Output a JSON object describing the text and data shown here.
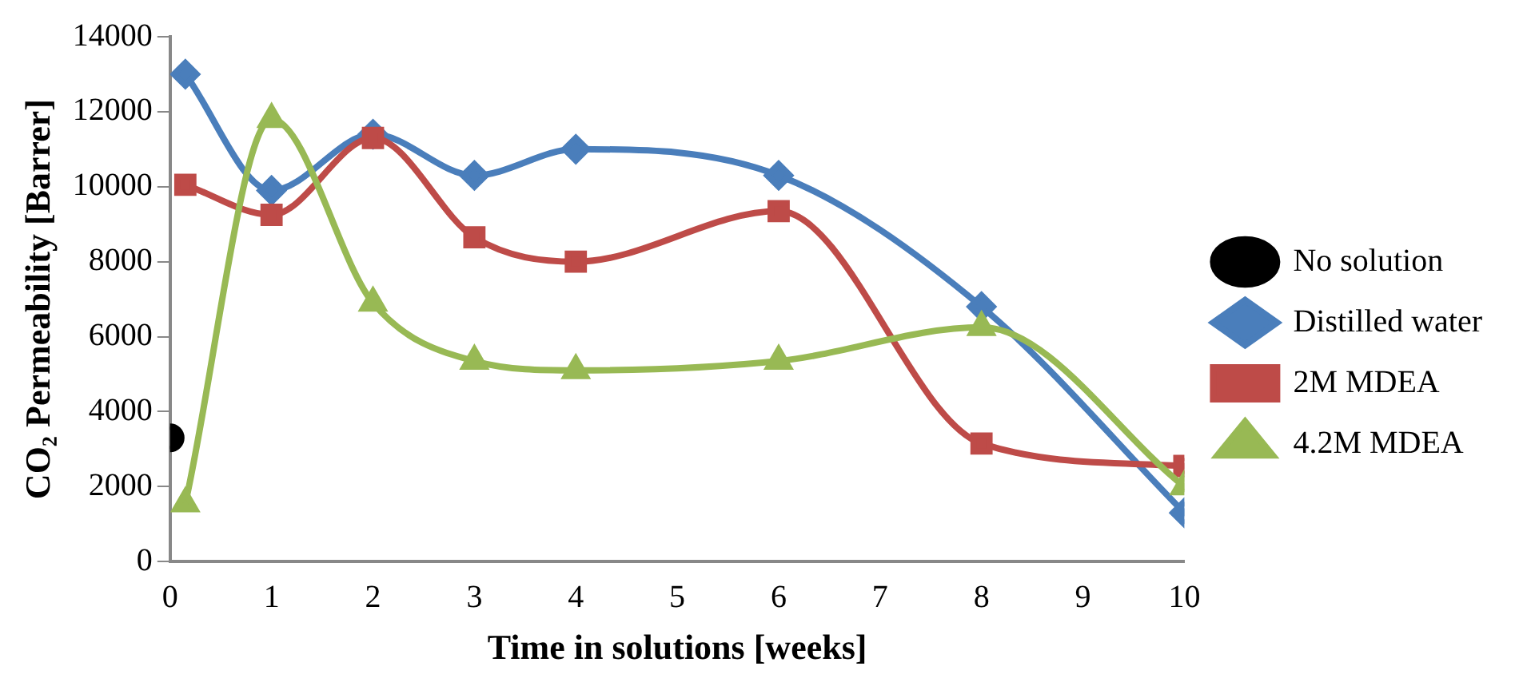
{
  "chart_data": {
    "type": "line",
    "xlabel": "Time in solutions [weeks]",
    "ylabel": "CO₂ Permeability [Barrer]",
    "xlim": [
      0,
      10
    ],
    "xticks": [
      0,
      1,
      2,
      3,
      4,
      5,
      6,
      7,
      8,
      9,
      10
    ],
    "ylim": [
      0,
      14000
    ],
    "yticks": [
      0,
      2000,
      4000,
      6000,
      8000,
      10000,
      12000,
      14000
    ],
    "grid": false,
    "legend": "right",
    "series": [
      {
        "name": "No solution",
        "color": "#000000",
        "marker": "circle",
        "type": "scatter",
        "x": [
          0
        ],
        "values": [
          3300
        ]
      },
      {
        "name": "Distilled water",
        "color": "#4a7ebb",
        "marker": "diamond",
        "x": [
          0.15,
          1,
          2,
          3,
          4,
          6,
          8,
          10
        ],
        "values": [
          13000,
          9900,
          11400,
          10300,
          11000,
          10300,
          6800,
          1300
        ]
      },
      {
        "name": "2M MDEA",
        "color": "#be4b48",
        "marker": "square",
        "x": [
          0.15,
          1,
          2,
          3,
          4,
          6,
          8,
          10
        ],
        "values": [
          10050,
          9250,
          11300,
          8650,
          8000,
          9350,
          3150,
          2550
        ]
      },
      {
        "name": "4.2M MDEA",
        "color": "#98b954",
        "marker": "triangle",
        "x": [
          0.15,
          1,
          2,
          3,
          4,
          6,
          8,
          10
        ],
        "values": [
          1550,
          11800,
          6900,
          5350,
          5100,
          5350,
          6250,
          2000
        ]
      }
    ]
  }
}
